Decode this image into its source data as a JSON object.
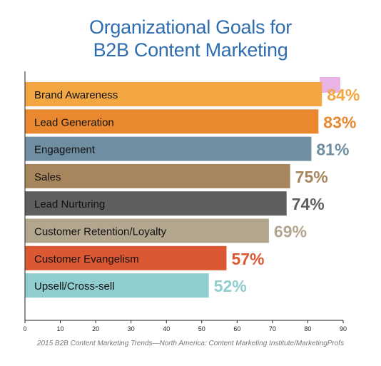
{
  "title_line1": "Organizational Goals for",
  "title_line2": "B2B Content Marketing",
  "source": "2015 B2B Content Marketing Trends—North America: Content Marketing Institute/MarketingProfs",
  "chart_data": {
    "type": "bar",
    "orientation": "horizontal",
    "title": "Organizational Goals for B2B Content Marketing",
    "categories": [
      "Brand Awareness",
      "Lead Generation",
      "Engagement",
      "Sales",
      "Lead Nurturing",
      "Customer Retention/Loyalty",
      "Customer Evangelism",
      "Upsell/Cross-sell"
    ],
    "values": [
      84,
      83,
      81,
      75,
      74,
      69,
      57,
      52
    ],
    "value_labels": [
      "84%",
      "83%",
      "81%",
      "75%",
      "74%",
      "69%",
      "57%",
      "52%"
    ],
    "colors": [
      "#f2a742",
      "#e9882f",
      "#6f8ea2",
      "#a8865d",
      "#5d5f61",
      "#b3a68f",
      "#dc5832",
      "#8fcdcf"
    ],
    "xlim": [
      0,
      90
    ],
    "xticks": [
      0,
      10,
      20,
      30,
      40,
      50,
      60,
      70,
      80,
      90
    ],
    "grid": false
  }
}
